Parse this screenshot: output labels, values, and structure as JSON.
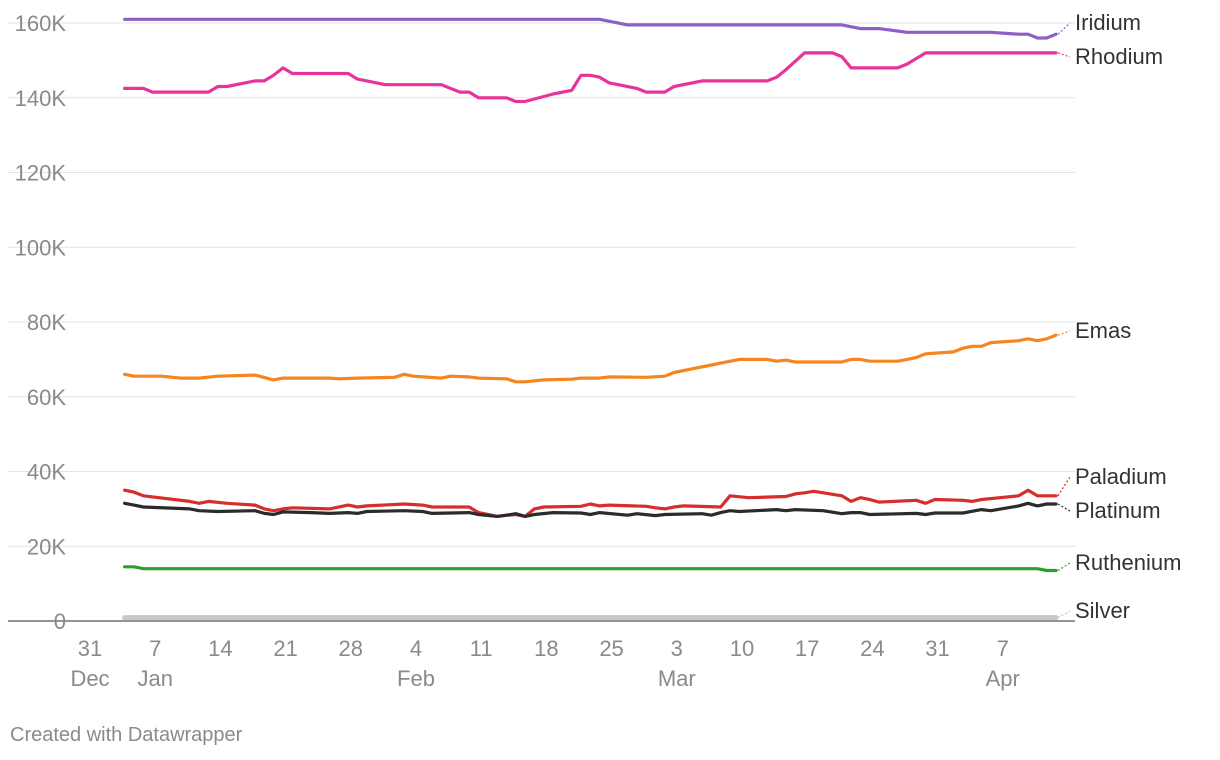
{
  "chart_data": {
    "type": "line",
    "footer": "Created with Datawrapper",
    "ylim": [
      0,
      160000
    ],
    "xlim": [
      "2023-12-31",
      "2024-04-11"
    ],
    "y_ticks": [
      {
        "value": 0,
        "label": "0"
      },
      {
        "value": 20000,
        "label": "20K"
      },
      {
        "value": 40000,
        "label": "40K"
      },
      {
        "value": 60000,
        "label": "60K"
      },
      {
        "value": 80000,
        "label": "80K"
      },
      {
        "value": 100000,
        "label": "100K"
      },
      {
        "value": 120000,
        "label": "120K"
      },
      {
        "value": 140000,
        "label": "140K"
      },
      {
        "value": 160000,
        "label": "160K"
      }
    ],
    "x_ticks": [
      {
        "date": "2023-12-31",
        "label": "31",
        "sublabel": "Dec"
      },
      {
        "date": "2024-01-07",
        "label": "7",
        "sublabel": "Jan"
      },
      {
        "date": "2024-01-14",
        "label": "14",
        "sublabel": ""
      },
      {
        "date": "2024-01-21",
        "label": "21",
        "sublabel": ""
      },
      {
        "date": "2024-01-28",
        "label": "28",
        "sublabel": ""
      },
      {
        "date": "2024-02-04",
        "label": "4",
        "sublabel": "Feb"
      },
      {
        "date": "2024-02-11",
        "label": "11",
        "sublabel": ""
      },
      {
        "date": "2024-02-18",
        "label": "18",
        "sublabel": ""
      },
      {
        "date": "2024-02-25",
        "label": "25",
        "sublabel": ""
      },
      {
        "date": "2024-03-03",
        "label": "3",
        "sublabel": "Mar"
      },
      {
        "date": "2024-03-10",
        "label": "10",
        "sublabel": ""
      },
      {
        "date": "2024-03-17",
        "label": "17",
        "sublabel": ""
      },
      {
        "date": "2024-03-24",
        "label": "24",
        "sublabel": ""
      },
      {
        "date": "2024-03-31",
        "label": "31",
        "sublabel": ""
      },
      {
        "date": "2024-04-07",
        "label": "7",
        "sublabel": "Apr"
      }
    ],
    "series": [
      {
        "name": "Iridium",
        "color": "#8e5fc4",
        "points": [
          [
            "2024-01-02",
            161000
          ],
          [
            "2024-02-22",
            161000
          ],
          [
            "2024-02-25",
            159500
          ],
          [
            "2024-03-19",
            159500
          ],
          [
            "2024-03-21",
            158500
          ],
          [
            "2024-03-23",
            158500
          ],
          [
            "2024-03-26",
            157500
          ],
          [
            "2024-04-04",
            157500
          ],
          [
            "2024-04-07",
            157000
          ],
          [
            "2024-04-08",
            157000
          ],
          [
            "2024-04-09",
            156000
          ],
          [
            "2024-04-10",
            156000
          ],
          [
            "2024-04-11",
            157000
          ]
        ]
      },
      {
        "name": "Rhodium",
        "color": "#e8349a",
        "points": [
          [
            "2024-01-02",
            142500
          ],
          [
            "2024-01-04",
            142500
          ],
          [
            "2024-01-05",
            141500
          ],
          [
            "2024-01-11",
            141500
          ],
          [
            "2024-01-12",
            143000
          ],
          [
            "2024-01-13",
            143000
          ],
          [
            "2024-01-16",
            144500
          ],
          [
            "2024-01-17",
            144500
          ],
          [
            "2024-01-18",
            146000
          ],
          [
            "2024-01-19",
            148000
          ],
          [
            "2024-01-20",
            146500
          ],
          [
            "2024-01-26",
            146500
          ],
          [
            "2024-01-27",
            145000
          ],
          [
            "2024-01-30",
            143500
          ],
          [
            "2024-02-05",
            143500
          ],
          [
            "2024-02-07",
            141500
          ],
          [
            "2024-02-08",
            141500
          ],
          [
            "2024-02-09",
            140000
          ],
          [
            "2024-02-12",
            140000
          ],
          [
            "2024-02-13",
            139000
          ],
          [
            "2024-02-14",
            139000
          ],
          [
            "2024-02-17",
            141000
          ],
          [
            "2024-02-19",
            142000
          ],
          [
            "2024-02-20",
            146000
          ],
          [
            "2024-02-21",
            146000
          ],
          [
            "2024-02-22",
            145500
          ],
          [
            "2024-02-23",
            144000
          ],
          [
            "2024-02-26",
            142500
          ],
          [
            "2024-02-27",
            141500
          ],
          [
            "2024-02-29",
            141500
          ],
          [
            "2024-03-01",
            143000
          ],
          [
            "2024-03-04",
            144500
          ],
          [
            "2024-03-11",
            144500
          ],
          [
            "2024-03-12",
            145500
          ],
          [
            "2024-03-13",
            147500
          ],
          [
            "2024-03-15",
            152000
          ],
          [
            "2024-03-18",
            152000
          ],
          [
            "2024-03-19",
            151000
          ],
          [
            "2024-03-20",
            148000
          ],
          [
            "2024-03-25",
            148000
          ],
          [
            "2024-03-26",
            149000
          ],
          [
            "2024-03-28",
            152000
          ],
          [
            "2024-04-11",
            152000
          ]
        ]
      },
      {
        "name": "Emas",
        "color": "#f7851f",
        "points": [
          [
            "2024-01-02",
            66000
          ],
          [
            "2024-01-03",
            65500
          ],
          [
            "2024-01-06",
            65500
          ],
          [
            "2024-01-08",
            65000
          ],
          [
            "2024-01-10",
            65000
          ],
          [
            "2024-01-12",
            65500
          ],
          [
            "2024-01-16",
            65800
          ],
          [
            "2024-01-18",
            64500
          ],
          [
            "2024-01-19",
            65000
          ],
          [
            "2024-01-24",
            65000
          ],
          [
            "2024-01-25",
            64800
          ],
          [
            "2024-01-27",
            65000
          ],
          [
            "2024-01-31",
            65200
          ],
          [
            "2024-02-01",
            66000
          ],
          [
            "2024-02-02",
            65500
          ],
          [
            "2024-02-05",
            65000
          ],
          [
            "2024-02-06",
            65500
          ],
          [
            "2024-02-08",
            65300
          ],
          [
            "2024-02-09",
            65000
          ],
          [
            "2024-02-12",
            64800
          ],
          [
            "2024-02-13",
            64000
          ],
          [
            "2024-02-14",
            64000
          ],
          [
            "2024-02-16",
            64500
          ],
          [
            "2024-02-19",
            64700
          ],
          [
            "2024-02-20",
            65000
          ],
          [
            "2024-02-22",
            65000
          ],
          [
            "2024-02-23",
            65300
          ],
          [
            "2024-02-27",
            65200
          ],
          [
            "2024-02-29",
            65500
          ],
          [
            "2024-03-01",
            66500
          ],
          [
            "2024-03-03",
            67500
          ],
          [
            "2024-03-05",
            68500
          ],
          [
            "2024-03-06",
            69000
          ],
          [
            "2024-03-08",
            70000
          ],
          [
            "2024-03-11",
            70000
          ],
          [
            "2024-03-12",
            69500
          ],
          [
            "2024-03-13",
            69800
          ],
          [
            "2024-03-14",
            69300
          ],
          [
            "2024-03-19",
            69300
          ],
          [
            "2024-03-20",
            70000
          ],
          [
            "2024-03-21",
            70000
          ],
          [
            "2024-03-22",
            69500
          ],
          [
            "2024-03-25",
            69500
          ],
          [
            "2024-03-26",
            70000
          ],
          [
            "2024-03-27",
            70500
          ],
          [
            "2024-03-28",
            71500
          ],
          [
            "2024-03-31",
            72000
          ],
          [
            "2024-04-01",
            73000
          ],
          [
            "2024-04-02",
            73500
          ],
          [
            "2024-04-03",
            73500
          ],
          [
            "2024-04-04",
            74500
          ],
          [
            "2024-04-07",
            75000
          ],
          [
            "2024-04-08",
            75500
          ],
          [
            "2024-04-09",
            75000
          ],
          [
            "2024-04-10",
            75500
          ],
          [
            "2024-04-11",
            76500
          ]
        ]
      },
      {
        "name": "Paladium",
        "color": "#d62d2d",
        "points": [
          [
            "2024-01-02",
            35000
          ],
          [
            "2024-01-03",
            34500
          ],
          [
            "2024-01-04",
            33500
          ],
          [
            "2024-01-09",
            32000
          ],
          [
            "2024-01-10",
            31500
          ],
          [
            "2024-01-11",
            32000
          ],
          [
            "2024-01-13",
            31500
          ],
          [
            "2024-01-16",
            31000
          ],
          [
            "2024-01-17",
            30000
          ],
          [
            "2024-01-18",
            29500
          ],
          [
            "2024-01-19",
            30000
          ],
          [
            "2024-01-20",
            30300
          ],
          [
            "2024-01-24",
            30000
          ],
          [
            "2024-01-26",
            31000
          ],
          [
            "2024-01-27",
            30500
          ],
          [
            "2024-01-28",
            30800
          ],
          [
            "2024-02-01",
            31300
          ],
          [
            "2024-02-03",
            31000
          ],
          [
            "2024-02-04",
            30500
          ],
          [
            "2024-02-08",
            30500
          ],
          [
            "2024-02-09",
            29000
          ],
          [
            "2024-02-10",
            28500
          ],
          [
            "2024-02-11",
            28000
          ],
          [
            "2024-02-12",
            28300
          ],
          [
            "2024-02-13",
            28500
          ],
          [
            "2024-02-14",
            28000
          ],
          [
            "2024-02-15",
            30000
          ],
          [
            "2024-02-16",
            30500
          ],
          [
            "2024-02-20",
            30700
          ],
          [
            "2024-02-21",
            31300
          ],
          [
            "2024-02-22",
            30800
          ],
          [
            "2024-02-23",
            31000
          ],
          [
            "2024-02-27",
            30700
          ],
          [
            "2024-02-28",
            30300
          ],
          [
            "2024-02-29",
            30000
          ],
          [
            "2024-03-01",
            30500
          ],
          [
            "2024-03-02",
            30800
          ],
          [
            "2024-03-06",
            30500
          ],
          [
            "2024-03-07",
            33500
          ],
          [
            "2024-03-09",
            33000
          ],
          [
            "2024-03-13",
            33300
          ],
          [
            "2024-03-14",
            34000
          ],
          [
            "2024-03-15",
            34300
          ],
          [
            "2024-03-16",
            34700
          ],
          [
            "2024-03-17",
            34300
          ],
          [
            "2024-03-19",
            33500
          ],
          [
            "2024-03-20",
            32000
          ],
          [
            "2024-03-21",
            33000
          ],
          [
            "2024-03-22",
            32500
          ],
          [
            "2024-03-23",
            31800
          ],
          [
            "2024-03-27",
            32300
          ],
          [
            "2024-03-28",
            31500
          ],
          [
            "2024-03-29",
            32500
          ],
          [
            "2024-04-01",
            32300
          ],
          [
            "2024-04-02",
            32000
          ],
          [
            "2024-04-03",
            32500
          ],
          [
            "2024-04-05",
            33000
          ],
          [
            "2024-04-07",
            33500
          ],
          [
            "2024-04-08",
            35000
          ],
          [
            "2024-04-09",
            33500
          ],
          [
            "2024-04-11",
            33500
          ]
        ]
      },
      {
        "name": "Platinum",
        "color": "#2b2b2b",
        "points": [
          [
            "2024-01-02",
            31500
          ],
          [
            "2024-01-03",
            31000
          ],
          [
            "2024-01-04",
            30500
          ],
          [
            "2024-01-09",
            30000
          ],
          [
            "2024-01-10",
            29500
          ],
          [
            "2024-01-12",
            29300
          ],
          [
            "2024-01-16",
            29500
          ],
          [
            "2024-01-17",
            28800
          ],
          [
            "2024-01-18",
            28500
          ],
          [
            "2024-01-19",
            29200
          ],
          [
            "2024-01-22",
            29000
          ],
          [
            "2024-01-24",
            28800
          ],
          [
            "2024-01-26",
            29000
          ],
          [
            "2024-01-27",
            28800
          ],
          [
            "2024-01-28",
            29300
          ],
          [
            "2024-02-01",
            29500
          ],
          [
            "2024-02-03",
            29300
          ],
          [
            "2024-02-04",
            28800
          ],
          [
            "2024-02-08",
            29000
          ],
          [
            "2024-02-09",
            28500
          ],
          [
            "2024-02-11",
            28000
          ],
          [
            "2024-02-12",
            28300
          ],
          [
            "2024-02-13",
            28700
          ],
          [
            "2024-02-14",
            28000
          ],
          [
            "2024-02-15",
            28500
          ],
          [
            "2024-02-17",
            29000
          ],
          [
            "2024-02-20",
            28900
          ],
          [
            "2024-02-21",
            28500
          ],
          [
            "2024-02-22",
            29000
          ],
          [
            "2024-02-25",
            28300
          ],
          [
            "2024-02-26",
            28700
          ],
          [
            "2024-02-28",
            28200
          ],
          [
            "2024-02-29",
            28500
          ],
          [
            "2024-03-04",
            28700
          ],
          [
            "2024-03-05",
            28300
          ],
          [
            "2024-03-06",
            29000
          ],
          [
            "2024-03-07",
            29500
          ],
          [
            "2024-03-08",
            29300
          ],
          [
            "2024-03-12",
            29800
          ],
          [
            "2024-03-13",
            29500
          ],
          [
            "2024-03-14",
            29800
          ],
          [
            "2024-03-17",
            29500
          ],
          [
            "2024-03-19",
            28700
          ],
          [
            "2024-03-20",
            29000
          ],
          [
            "2024-03-21",
            29000
          ],
          [
            "2024-03-22",
            28500
          ],
          [
            "2024-03-27",
            28800
          ],
          [
            "2024-03-28",
            28500
          ],
          [
            "2024-03-29",
            28900
          ],
          [
            "2024-04-01",
            28900
          ],
          [
            "2024-04-03",
            29800
          ],
          [
            "2024-04-04",
            29500
          ],
          [
            "2024-04-07",
            30800
          ],
          [
            "2024-04-08",
            31500
          ],
          [
            "2024-04-09",
            30800
          ],
          [
            "2024-04-10",
            31300
          ],
          [
            "2024-04-11",
            31300
          ]
        ]
      },
      {
        "name": "Ruthenium",
        "color": "#2ca02c",
        "points": [
          [
            "2024-01-02",
            14500
          ],
          [
            "2024-01-03",
            14500
          ],
          [
            "2024-01-04",
            14000
          ],
          [
            "2024-04-09",
            14000
          ],
          [
            "2024-04-10",
            13500
          ],
          [
            "2024-04-11",
            13500
          ]
        ]
      },
      {
        "name": "Silver",
        "color": "#c8c8c8",
        "points": [
          [
            "2024-01-02",
            900
          ],
          [
            "2024-04-11",
            900
          ]
        ]
      }
    ]
  }
}
